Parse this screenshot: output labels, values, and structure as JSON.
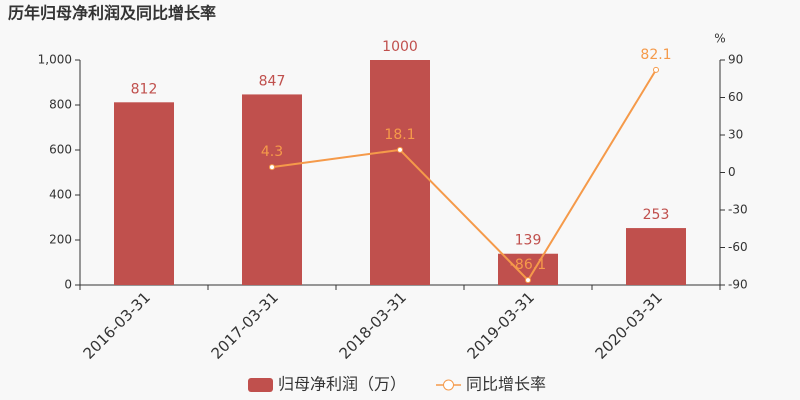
{
  "chart_data": {
    "type": "bar",
    "title": "历年归母净利润及同比增长率",
    "categories": [
      "2016-03-31",
      "2017-03-31",
      "2018-03-31",
      "2019-03-31",
      "2020-03-31"
    ],
    "series": [
      {
        "name": "归母净利润（万）",
        "color": "#c0504d",
        "values": [
          812,
          847,
          1000,
          139,
          253
        ]
      },
      {
        "name": "同比增长率",
        "color": "#f59a4a",
        "axis": "y2",
        "type": "line",
        "values": [
          null,
          4.3,
          18.1,
          -86.1,
          82.1
        ]
      }
    ],
    "ylim": [
      0,
      1000
    ],
    "yticks": [
      0,
      200,
      400,
      600,
      800,
      {
        "value": 1000,
        "label": "1,000"
      }
    ],
    "y2lim": [
      -90,
      90
    ],
    "y2ticks": [
      -90,
      -60,
      -30,
      0,
      30,
      60,
      90
    ],
    "y2label": "%",
    "grid": false,
    "legend": "bottom"
  }
}
